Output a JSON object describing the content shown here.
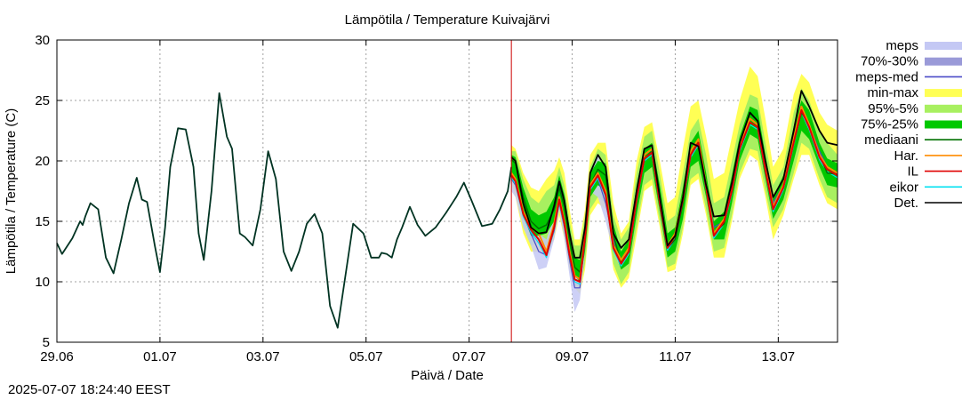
{
  "timestamp": "2025-07-07 18:24:40 EEST",
  "chart_data": {
    "type": "line",
    "title": "Lämpötila / Temperature   Kuivajärvi",
    "xlabel": "Päivä / Date",
    "ylabel": "Lämpötila / Temperature (C)",
    "ylim": [
      5,
      30
    ],
    "yticks": [
      5,
      10,
      15,
      20,
      25,
      30
    ],
    "xlim_days": [
      0,
      15.15
    ],
    "xticks": [
      {
        "day": 0,
        "label": "29.06"
      },
      {
        "day": 2,
        "label": "01.07"
      },
      {
        "day": 4,
        "label": "03.07"
      },
      {
        "day": 6,
        "label": "05.07"
      },
      {
        "day": 8,
        "label": "07.07"
      },
      {
        "day": 10,
        "label": "09.07"
      },
      {
        "day": 12,
        "label": "11.07"
      },
      {
        "day": 14,
        "label": "13.07"
      }
    ],
    "grid": true,
    "legend_position": "right",
    "forecast_start_day": 8.82,
    "colors": {
      "observed": "#003322",
      "now_line": "#cc0000",
      "meps": "#c4c8f4",
      "meps_7030": "#9a9ad8",
      "meps_med": "#4a4ac8",
      "minmax": "#ffff55",
      "p95_5": "#a8f060",
      "p75_25": "#00c800",
      "mediaani": "#007000",
      "har": "#ff8c00",
      "il": "#e00000",
      "eikor": "#00e0f0",
      "det": "#000000"
    },
    "legend": [
      {
        "label": "meps",
        "type": "band",
        "color": "#c4c8f4"
      },
      {
        "label": "70%-30%",
        "type": "band",
        "color": "#9a9ad8"
      },
      {
        "label": "meps-med",
        "type": "line",
        "color": "#4a4ac8"
      },
      {
        "label": "min-max",
        "type": "band",
        "color": "#ffff55"
      },
      {
        "label": "95%-5%",
        "type": "band",
        "color": "#a8f060"
      },
      {
        "label": "75%-25%",
        "type": "band",
        "color": "#00c800"
      },
      {
        "label": "mediaani",
        "type": "line",
        "color": "#007000"
      },
      {
        "label": "Har.",
        "type": "line",
        "color": "#ff8c00"
      },
      {
        "label": "IL",
        "type": "line",
        "color": "#e00000"
      },
      {
        "label": "eikor",
        "type": "line",
        "color": "#00e0f0"
      },
      {
        "label": "Det.",
        "type": "line",
        "color": "#000000"
      }
    ],
    "observed": {
      "x": [
        0,
        0.1,
        0.3,
        0.45,
        0.5,
        0.55,
        0.65,
        0.8,
        0.95,
        1.1,
        1.25,
        1.4,
        1.55,
        1.65,
        1.75,
        1.85,
        1.9,
        2.0,
        2.1,
        2.2,
        2.35,
        2.5,
        2.65,
        2.75,
        2.85,
        3.0,
        3.15,
        3.3,
        3.4,
        3.55,
        3.65,
        3.8,
        3.95,
        4.1,
        4.25,
        4.4,
        4.55,
        4.7,
        4.85,
        5.0,
        5.15,
        5.3,
        5.45,
        5.6,
        5.75,
        5.95,
        6.1,
        6.25,
        6.3,
        6.4,
        6.5,
        6.6,
        6.7,
        6.85,
        7.0,
        7.15,
        7.35,
        7.55,
        7.75,
        7.9,
        8.05,
        8.25,
        8.45,
        8.6,
        8.75,
        8.82
      ],
      "y": [
        13.2,
        12.3,
        13.6,
        15.0,
        14.7,
        15.4,
        16.5,
        16.0,
        12.0,
        10.7,
        13.5,
        16.5,
        18.6,
        16.8,
        16.6,
        14.2,
        13.0,
        10.8,
        14.5,
        19.5,
        22.7,
        22.6,
        19.5,
        14.0,
        11.8,
        17.5,
        25.6,
        22.0,
        21.0,
        14.0,
        13.7,
        13.0,
        16.0,
        20.8,
        18.5,
        12.5,
        10.9,
        12.5,
        14.8,
        15.6,
        14.0,
        8.0,
        6.2,
        10.5,
        14.8,
        14.0,
        12.0,
        12.0,
        12.4,
        12.3,
        12.0,
        13.5,
        14.5,
        16.2,
        14.7,
        13.8,
        14.5,
        15.7,
        17.0,
        18.2,
        16.7,
        14.6,
        14.8,
        16.0,
        17.5,
        19.5
      ]
    },
    "forecast": {
      "x": [
        8.82,
        8.9,
        9.05,
        9.2,
        9.35,
        9.5,
        9.65,
        9.75,
        9.85,
        9.95,
        10.05,
        10.15,
        10.25,
        10.35,
        10.5,
        10.65,
        10.8,
        10.95,
        11.1,
        11.25,
        11.4,
        11.55,
        11.7,
        11.85,
        12.0,
        12.15,
        12.3,
        12.45,
        12.6,
        12.75,
        12.95,
        13.1,
        13.25,
        13.45,
        13.6,
        13.75,
        13.9,
        14.1,
        14.3,
        14.45,
        14.6,
        14.8,
        14.95,
        15.15
      ],
      "det": [
        20.3,
        20.0,
        16.5,
        14.5,
        14.0,
        14.1,
        16.3,
        18.3,
        16.7,
        14.0,
        12.0,
        12.0,
        14.5,
        19.0,
        20.5,
        19.5,
        14.0,
        12.8,
        13.5,
        17.5,
        21.0,
        21.3,
        17.0,
        13.0,
        13.8,
        17.0,
        21.5,
        21.2,
        18.0,
        15.4,
        15.5,
        18.2,
        21.5,
        24.0,
        23.3,
        20.0,
        17.0,
        18.5,
        22.5,
        25.8,
        24.5,
        22.5,
        21.5,
        21.3
      ],
      "mediaani": [
        20.1,
        19.8,
        17.0,
        15.0,
        14.4,
        14.7,
        16.0,
        17.8,
        16.2,
        13.5,
        11.2,
        10.8,
        13.5,
        18.0,
        19.3,
        18.8,
        13.8,
        11.6,
        12.5,
        17.0,
        20.2,
        20.8,
        17.0,
        12.8,
        13.5,
        16.5,
        20.8,
        21.5,
        18.0,
        14.0,
        14.8,
        17.8,
        21.2,
        23.5,
        23.0,
        19.5,
        16.0,
        17.8,
        21.5,
        24.0,
        23.0,
        20.5,
        19.0,
        18.9
      ],
      "p75_25_lo": [
        19.0,
        18.5,
        15.5,
        13.8,
        13.8,
        14.0,
        15.0,
        16.5,
        15.0,
        12.5,
        10.5,
        10.0,
        12.5,
        17.0,
        18.0,
        17.5,
        12.8,
        11.0,
        11.5,
        15.5,
        19.0,
        19.5,
        15.8,
        12.0,
        12.5,
        15.2,
        19.5,
        20.0,
        17.0,
        13.5,
        13.5,
        16.5,
        20.0,
        22.2,
        21.8,
        18.5,
        15.2,
        16.8,
        20.0,
        22.5,
        21.8,
        19.5,
        18.0,
        17.8
      ],
      "p75_25_hi": [
        20.5,
        20.3,
        17.8,
        16.0,
        15.5,
        15.8,
        17.0,
        18.8,
        17.2,
        14.5,
        12.0,
        11.8,
        14.5,
        19.0,
        20.0,
        19.8,
        14.8,
        12.5,
        13.5,
        18.0,
        21.0,
        21.5,
        18.0,
        14.0,
        14.5,
        17.8,
        21.5,
        22.5,
        19.0,
        15.0,
        15.8,
        18.8,
        22.0,
        24.5,
        24.2,
        20.5,
        17.0,
        18.8,
        22.8,
        25.0,
        24.2,
        21.5,
        20.2,
        19.8
      ],
      "p95_5_lo": [
        18.5,
        17.8,
        14.5,
        13.0,
        13.2,
        13.0,
        14.2,
        16.0,
        14.0,
        11.5,
        9.8,
        9.5,
        11.5,
        16.0,
        17.0,
        16.5,
        11.5,
        9.8,
        10.8,
        14.5,
        18.0,
        18.5,
        15.0,
        11.2,
        11.5,
        14.5,
        18.5,
        19.0,
        16.0,
        12.5,
        12.8,
        15.5,
        19.0,
        21.0,
        20.8,
        17.5,
        14.5,
        16.0,
        19.0,
        21.5,
        21.0,
        18.5,
        17.0,
        16.5
      ],
      "p95_5_hi": [
        20.8,
        20.8,
        18.5,
        17.0,
        16.5,
        17.5,
        18.0,
        19.5,
        18.0,
        15.0,
        13.0,
        13.0,
        15.5,
        19.5,
        21.0,
        20.5,
        15.5,
        13.5,
        14.5,
        19.0,
        22.0,
        22.5,
        19.0,
        15.0,
        15.5,
        19.0,
        22.5,
        23.5,
        20.5,
        16.5,
        17.0,
        20.0,
        23.0,
        25.5,
        25.2,
        21.5,
        18.0,
        19.5,
        24.0,
        26.0,
        25.0,
        22.5,
        21.5,
        20.5
      ],
      "minmax_lo": [
        18.0,
        17.0,
        14.0,
        12.5,
        12.5,
        12.5,
        13.5,
        15.5,
        13.5,
        11.0,
        9.5,
        9.0,
        11.0,
        15.5,
        16.5,
        16.0,
        11.0,
        9.5,
        10.3,
        13.8,
        17.5,
        18.0,
        14.5,
        10.8,
        11.0,
        14.0,
        18.0,
        18.5,
        15.5,
        12.0,
        12.0,
        15.0,
        18.5,
        20.5,
        20.0,
        17.0,
        13.5,
        15.5,
        18.5,
        20.5,
        20.5,
        18.0,
        16.5,
        16.0
      ],
      "minmax_hi": [
        21.3,
        21.0,
        19.0,
        17.8,
        17.5,
        18.5,
        19.2,
        20.3,
        19.0,
        16.0,
        13.5,
        13.5,
        16.0,
        20.5,
        21.5,
        21.5,
        16.5,
        14.0,
        15.0,
        20.0,
        22.8,
        23.2,
        20.0,
        16.5,
        17.0,
        21.0,
        24.5,
        25.0,
        22.0,
        18.5,
        19.0,
        22.0,
        25.0,
        27.8,
        27.0,
        23.5,
        19.5,
        21.0,
        25.5,
        27.2,
        26.5,
        24.0,
        23.0,
        22.5
      ],
      "meps_lo": [
        17.5,
        17.0,
        14.5,
        13.0,
        11.0,
        11.2,
        13.5,
        16.0,
        13.5,
        10.5,
        7.5,
        8.5,
        12.5,
        17.5,
        17.0,
        15.0,
        12.5,
        11.0,
        12.0,
        16.0,
        19.5,
        20.0,
        16.0,
        12.0,
        13.0,
        16.0,
        20.0,
        21.0,
        17.0,
        14.0,
        14.5,
        17.0,
        20.5,
        22.5,
        22.0,
        19.0,
        16.0,
        17.5,
        21.0,
        23.5,
        22.5,
        20.0,
        19.0,
        18.5
      ],
      "meps_hi": [
        19.5,
        19.0,
        16.5,
        14.5,
        14.0,
        13.5,
        15.5,
        17.5,
        16.0,
        13.5,
        10.5,
        10.5,
        14.5,
        19.0,
        20.5,
        18.5,
        14.0,
        12.5,
        13.0,
        17.5,
        20.5,
        21.0,
        17.5,
        13.2,
        14.0,
        17.0,
        21.0,
        22.0,
        18.5,
        15.0,
        15.5,
        18.0,
        21.5,
        24.0,
        23.5,
        20.0,
        17.0,
        18.5,
        22.0,
        24.5,
        23.5,
        21.5,
        20.0,
        19.5
      ],
      "meps_med": [
        18.5,
        18.0,
        15.5,
        14.0,
        12.5,
        12.2,
        14.2,
        16.5,
        14.5,
        11.8,
        9.5,
        9.5,
        13.5,
        18.0,
        18.5,
        16.5,
        13.5,
        11.8,
        12.5,
        17.0,
        20.0,
        20.5,
        16.8,
        12.6,
        13.5,
        16.5,
        20.5,
        21.5,
        17.8,
        14.5,
        15.0,
        17.5,
        21.0,
        23.2,
        22.8,
        19.5,
        16.5,
        18.0,
        21.5,
        24.0,
        23.0,
        20.8,
        19.5,
        19.0
      ],
      "har": [
        19.0,
        18.5,
        15.8,
        14.5,
        14.0,
        12.5,
        14.8,
        17.0,
        15.0,
        12.5,
        10.5,
        10.2,
        13.8,
        18.0,
        19.0,
        17.5,
        13.0,
        11.8,
        12.8,
        17.0,
        20.5,
        21.0,
        16.8,
        13.0,
        14.0,
        17.0,
        20.8,
        21.8,
        18.0,
        14.0,
        15.2,
        17.8,
        21.2,
        23.5,
        23.0,
        19.5,
        16.2,
        18.0,
        21.8,
        24.5,
        23.0,
        20.5,
        19.5,
        19.0
      ],
      "il": [
        18.8,
        18.3,
        15.6,
        14.3,
        13.5,
        12.2,
        14.5,
        16.8,
        14.8,
        12.2,
        10.2,
        10.0,
        13.6,
        17.8,
        18.8,
        17.2,
        12.8,
        11.5,
        12.5,
        16.8,
        20.2,
        20.7,
        16.5,
        12.8,
        13.8,
        16.8,
        20.5,
        21.5,
        17.8,
        13.8,
        15.0,
        17.5,
        21.0,
        23.2,
        22.8,
        19.2,
        16.0,
        17.8,
        21.5,
        24.2,
        22.8,
        20.3,
        19.3,
        18.8
      ],
      "eikor": [
        18.6,
        18.1,
        15.4,
        14.1,
        13.2,
        12.0,
        14.3,
        16.6,
        14.6,
        12.0,
        10.0,
        9.8,
        13.4,
        17.6,
        18.6,
        17.0,
        12.6,
        11.3,
        12.3,
        16.6,
        20.0,
        20.5,
        16.3,
        12.6,
        13.6,
        16.6,
        20.3,
        21.3,
        17.6,
        13.6,
        14.8,
        17.3,
        20.8,
        23.0,
        22.6,
        19.0,
        15.8,
        17.6,
        21.3,
        24.0,
        22.6,
        20.1,
        19.1,
        18.6
      ]
    }
  }
}
